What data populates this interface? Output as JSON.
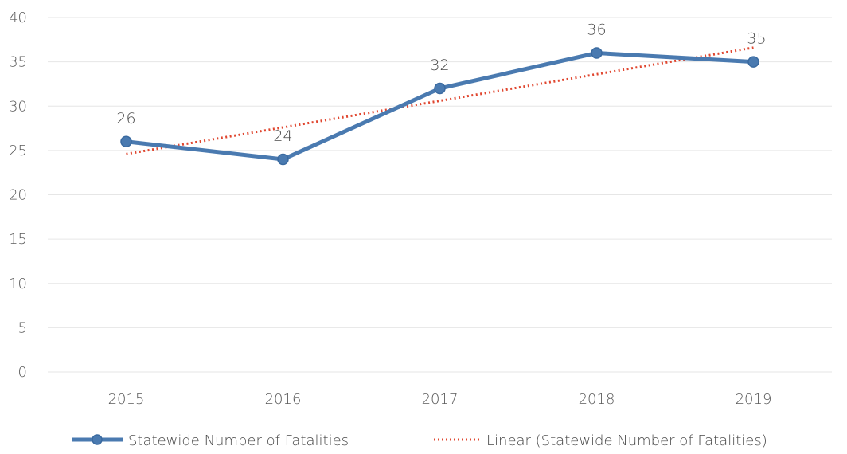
{
  "chart_data": {
    "type": "line",
    "title": "",
    "xlabel": "",
    "ylabel": "",
    "categories": [
      "2015",
      "2016",
      "2017",
      "2018",
      "2019"
    ],
    "ylim": [
      0,
      40
    ],
    "yticks": [
      0,
      5,
      10,
      15,
      20,
      25,
      30,
      35,
      40
    ],
    "grid": true,
    "legend_position": "bottom",
    "series": [
      {
        "name": "Statewide Number of Fatalities",
        "values": [
          26,
          24,
          32,
          36,
          35
        ],
        "color": "#4a7ab0",
        "data_labels": [
          "26",
          "24",
          "32",
          "36",
          "35"
        ]
      }
    ],
    "trendline": {
      "name": "Linear (Statewide Number of Fatalities)",
      "type": "linear",
      "color": "#e0462f",
      "values": [
        24.6,
        27.6,
        30.6,
        33.6,
        36.6
      ]
    }
  }
}
